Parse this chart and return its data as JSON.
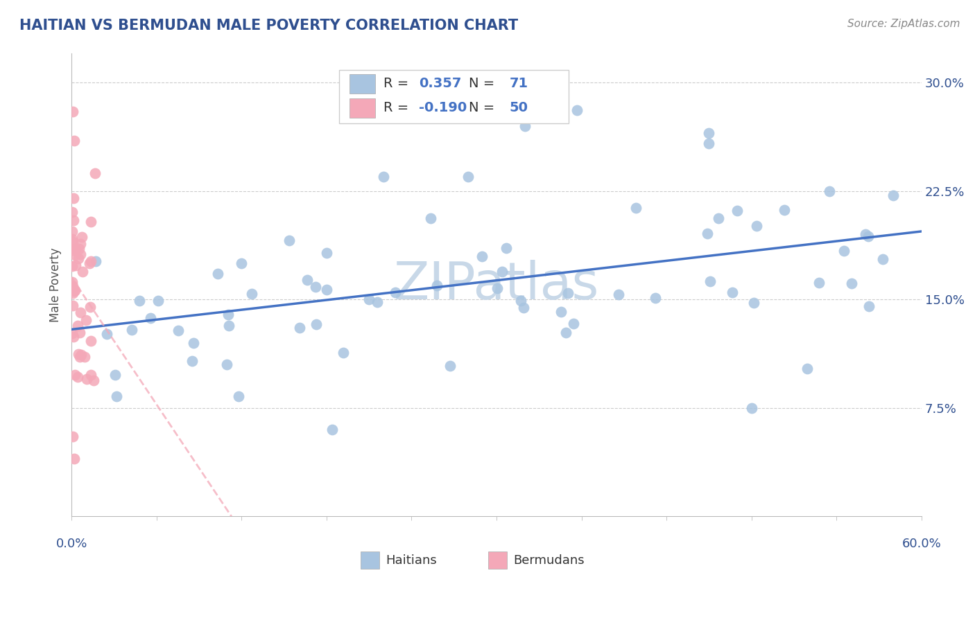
{
  "title": "HAITIAN VS BERMUDAN MALE POVERTY CORRELATION CHART",
  "source": "Source: ZipAtlas.com",
  "ylabel": "Male Poverty",
  "yticks": [
    0.0,
    0.075,
    0.15,
    0.225,
    0.3
  ],
  "ytick_labels": [
    "",
    "7.5%",
    "15.0%",
    "22.5%",
    "30.0%"
  ],
  "xlim": [
    0.0,
    0.6
  ],
  "ylim": [
    0.0,
    0.32
  ],
  "haitian_R": 0.357,
  "haitian_N": 71,
  "bermudan_R": -0.19,
  "bermudan_N": 50,
  "haitian_color": "#a8c4e0",
  "bermudan_color": "#f4a8b8",
  "haitian_line_color": "#4472c4",
  "bermudan_line_color": "#f4a8b8",
  "watermark": "ZIPatlas",
  "watermark_color": "#c8d8e8",
  "background_color": "#ffffff",
  "title_color": "#2f4f8f",
  "value_color": "#4472c4",
  "label_color": "#333333",
  "axis_label_color": "#555555",
  "tick_color": "#2f4f8f"
}
